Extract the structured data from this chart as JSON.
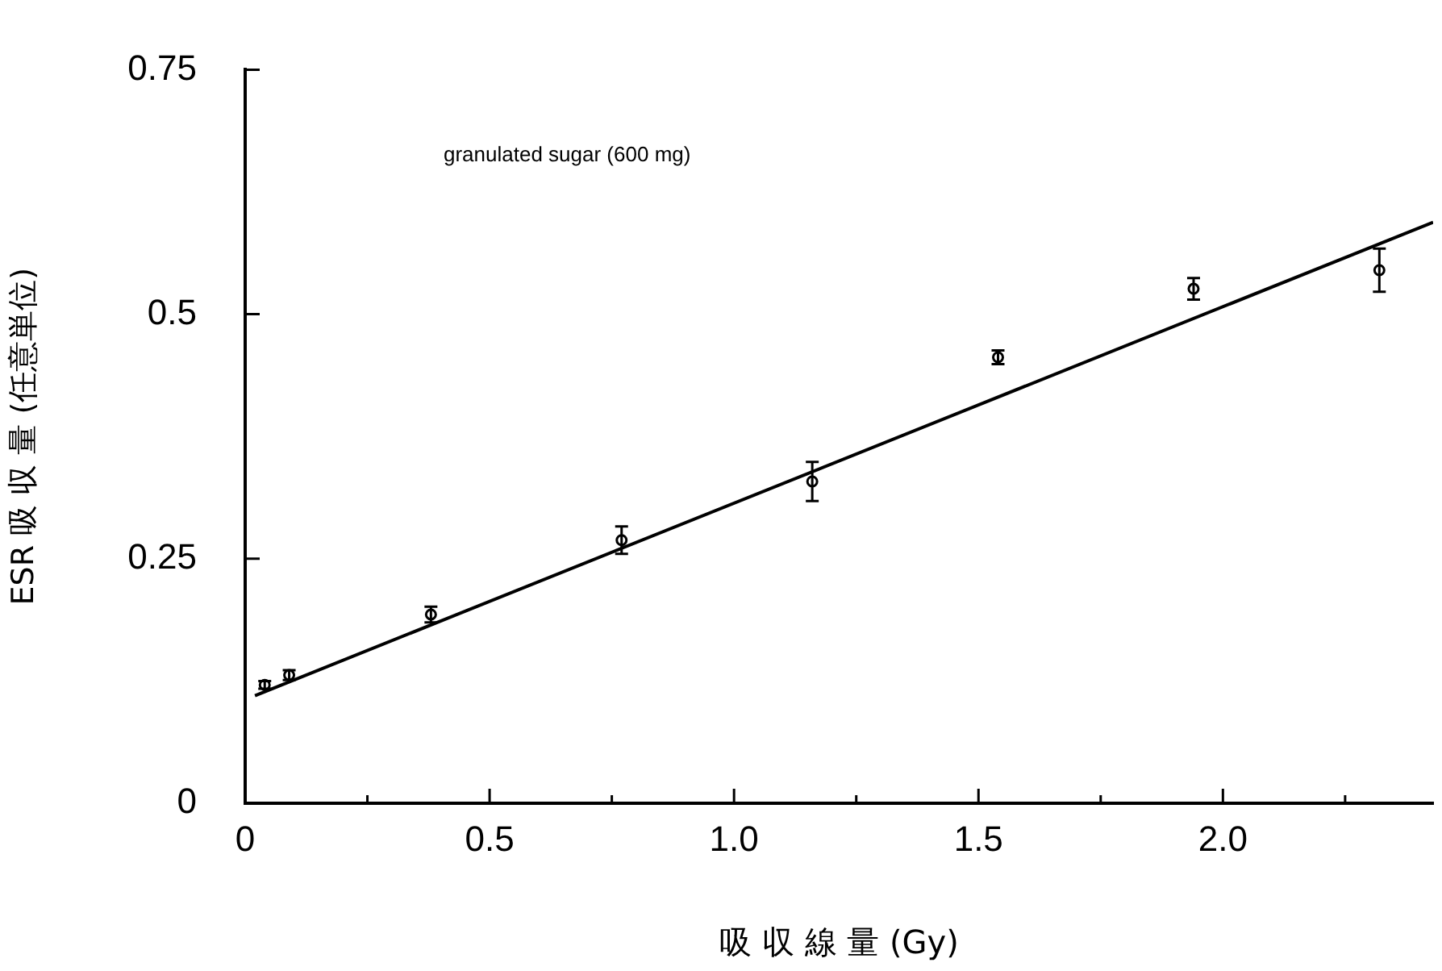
{
  "chart_data": {
    "type": "scatter",
    "xlabel": "吸 収 線 量 (Gy)",
    "ylabel": "ESR 吸 収 量 (任意単位)",
    "annotations": [
      "granulated sugar (600 mg)"
    ],
    "series": [
      {
        "color": "#000000",
        "marker": "circle",
        "x": [
          0.04,
          0.09,
          0.38,
          0.77,
          1.16,
          1.54,
          1.94,
          2.32
        ],
        "values": [
          0.121,
          0.131,
          0.193,
          0.269,
          0.329,
          0.456,
          0.526,
          0.545
        ],
        "errors": [
          0.004,
          0.005,
          0.008,
          0.014,
          0.02,
          0.007,
          0.011,
          0.022
        ]
      },
      {
        "type": "line",
        "color": "#000000",
        "marker": "none",
        "x": [
          0.02,
          2.43
        ],
        "values": [
          0.11,
          0.594
        ]
      }
    ],
    "grid": false,
    "legend": false,
    "xlim": [
      0,
      2.43
    ],
    "xticks": [
      0,
      {
        "value": 0.25,
        "label": null
      },
      0.5,
      {
        "value": 0.75,
        "label": null
      },
      {
        "value": 1,
        "label": "1.0"
      },
      {
        "value": 1.25,
        "label": null
      },
      1.5,
      {
        "value": 1.75,
        "label": null
      },
      {
        "value": 2,
        "label": "2.0"
      },
      {
        "value": 2.25,
        "label": null
      }
    ],
    "ylim": [
      0,
      0.75
    ],
    "yticks": [
      0,
      0.25,
      0.5,
      0.75
    ]
  }
}
